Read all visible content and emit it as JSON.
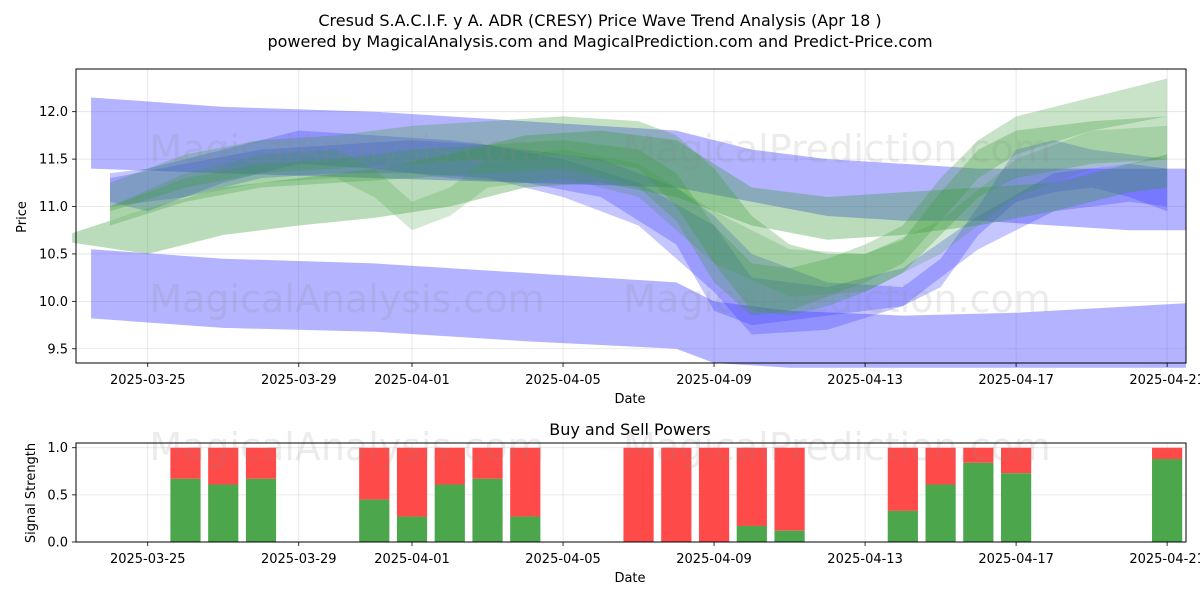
{
  "chart_data": [
    {
      "type": "area",
      "title": "Cresud S.A.C.I.F. y A. ADR (CRESY) Price Wave Trend Analysis (Apr 18 )",
      "subtitle": "powered by MagicalAnalysis.com and MagicalPrediction.com and Predict-Price.com",
      "xlabel": "Date",
      "ylabel": "Price",
      "x_start": "2025-03-23",
      "xlim": [
        0.1,
        29.5
      ],
      "ylim": [
        9.35,
        12.45
      ],
      "grid": true,
      "x_ticks": [
        {
          "day": 2,
          "label": "2025-03-25"
        },
        {
          "day": 6,
          "label": "2025-03-29"
        },
        {
          "day": 9,
          "label": "2025-04-01"
        },
        {
          "day": 13,
          "label": "2025-04-05"
        },
        {
          "day": 17,
          "label": "2025-04-09"
        },
        {
          "day": 21,
          "label": "2025-04-13"
        },
        {
          "day": 25,
          "label": "2025-04-17"
        },
        {
          "day": 29,
          "label": "2025-04-21"
        }
      ],
      "y_ticks": [
        9.5,
        10.0,
        10.5,
        11.0,
        11.5,
        12.0
      ],
      "colors": {
        "blue": "#4040ff",
        "green": "#3a9a3a"
      },
      "bands": [
        {
          "color": "blue",
          "opacity": 0.4,
          "x": [
            0.5,
            4,
            8,
            12,
            16,
            18,
            20,
            22,
            24,
            26,
            28,
            29.5
          ],
          "upper": [
            12.15,
            12.05,
            12.0,
            11.9,
            11.8,
            11.6,
            11.5,
            11.45,
            11.4,
            11.4,
            11.4,
            11.4
          ],
          "lower": [
            11.4,
            11.35,
            11.3,
            11.25,
            11.2,
            11.05,
            10.9,
            10.85,
            10.85,
            10.8,
            10.75,
            10.75
          ]
        },
        {
          "color": "blue",
          "opacity": 0.4,
          "x": [
            0.5,
            4,
            8,
            12,
            16,
            17,
            19,
            22,
            25,
            29.5
          ],
          "upper": [
            10.55,
            10.45,
            10.4,
            10.3,
            10.2,
            10.0,
            9.9,
            9.85,
            9.88,
            9.98
          ],
          "lower": [
            9.82,
            9.72,
            9.68,
            9.58,
            9.5,
            9.35,
            9.3,
            9.3,
            9.3,
            9.3
          ]
        },
        {
          "color": "blue",
          "opacity": 0.3,
          "x": [
            1,
            2,
            4,
            6,
            8,
            10,
            12,
            14,
            16,
            17,
            18,
            20,
            22,
            23,
            24,
            25,
            26,
            27,
            28,
            29
          ],
          "upper": [
            11.35,
            11.4,
            11.6,
            11.8,
            11.75,
            11.7,
            11.6,
            11.5,
            11.2,
            10.9,
            10.5,
            10.2,
            10.15,
            10.45,
            11.0,
            11.6,
            11.7,
            11.6,
            11.55,
            11.5
          ],
          "lower": [
            11.05,
            10.95,
            11.25,
            11.45,
            11.4,
            11.3,
            11.25,
            11.1,
            10.6,
            9.9,
            9.75,
            9.85,
            9.95,
            10.15,
            10.7,
            11.05,
            11.15,
            11.2,
            11.1,
            10.95
          ]
        },
        {
          "color": "blue",
          "opacity": 0.3,
          "x": [
            1,
            3,
            5,
            7,
            9,
            11,
            13,
            15,
            17,
            18,
            20,
            22,
            24,
            26,
            28,
            29
          ],
          "upper": [
            11.3,
            11.45,
            11.6,
            11.65,
            11.7,
            11.65,
            11.5,
            11.25,
            10.8,
            10.25,
            10.15,
            10.35,
            10.9,
            11.35,
            11.45,
            11.4
          ],
          "lower": [
            11.0,
            11.1,
            11.3,
            11.35,
            11.35,
            11.3,
            11.1,
            10.8,
            10.1,
            9.65,
            9.7,
            9.95,
            10.55,
            10.95,
            11.05,
            11.0
          ]
        },
        {
          "color": "green",
          "opacity": 0.35,
          "x": [
            0,
            2,
            4,
            6,
            8,
            10,
            12,
            14,
            16,
            18,
            20,
            22,
            24,
            26,
            28,
            29
          ],
          "upper": [
            10.72,
            10.98,
            11.2,
            11.3,
            11.4,
            11.55,
            11.75,
            11.8,
            11.7,
            11.2,
            11.1,
            11.15,
            11.2,
            11.25,
            11.45,
            11.55
          ],
          "lower": [
            10.62,
            10.5,
            10.7,
            10.8,
            10.88,
            11.0,
            11.2,
            11.25,
            11.1,
            10.8,
            10.65,
            10.7,
            10.8,
            10.95,
            11.15,
            11.2
          ]
        },
        {
          "color": "green",
          "opacity": 0.3,
          "x": [
            1,
            3,
            5,
            7,
            9,
            11,
            13,
            15,
            16,
            17,
            18,
            19,
            20,
            21,
            22,
            23,
            24,
            25,
            27,
            29
          ],
          "upper": [
            11.25,
            11.55,
            11.7,
            11.75,
            11.85,
            11.9,
            11.95,
            11.9,
            11.75,
            11.4,
            10.9,
            10.6,
            10.5,
            10.5,
            10.65,
            11.15,
            11.6,
            11.8,
            11.9,
            11.95
          ],
          "lower": [
            10.95,
            11.2,
            11.35,
            11.4,
            11.45,
            11.5,
            11.55,
            11.4,
            11.0,
            10.4,
            9.9,
            9.85,
            9.95,
            10.1,
            10.3,
            10.7,
            11.1,
            11.3,
            11.45,
            11.5
          ]
        },
        {
          "color": "green",
          "opacity": 0.28,
          "x": [
            1,
            3,
            5,
            7,
            9,
            11,
            13,
            15,
            16,
            17,
            18,
            19,
            20,
            21,
            22,
            23,
            24,
            25,
            27,
            29
          ],
          "upper": [
            11.0,
            11.3,
            11.45,
            11.5,
            11.6,
            11.65,
            11.7,
            11.6,
            11.35,
            10.8,
            10.4,
            10.35,
            10.45,
            10.6,
            10.8,
            11.3,
            11.7,
            11.95,
            12.15,
            12.35
          ],
          "lower": [
            10.8,
            11.05,
            11.2,
            11.25,
            11.3,
            11.35,
            11.4,
            11.2,
            10.85,
            10.2,
            9.85,
            9.9,
            10.05,
            10.2,
            10.4,
            10.85,
            11.3,
            11.55,
            11.8,
            11.95
          ]
        },
        {
          "color": "green",
          "opacity": 0.22,
          "x": [
            1,
            3,
            5,
            7,
            8,
            9,
            10,
            11,
            13,
            15,
            17,
            19,
            21,
            23,
            25,
            27,
            29
          ],
          "upper": [
            11.0,
            11.35,
            11.55,
            11.6,
            11.4,
            11.05,
            11.2,
            11.5,
            11.6,
            11.45,
            10.95,
            10.55,
            10.5,
            10.85,
            11.5,
            11.8,
            11.85
          ],
          "lower": [
            10.85,
            11.1,
            11.25,
            11.3,
            11.1,
            10.75,
            10.9,
            11.2,
            11.3,
            11.1,
            10.4,
            10.05,
            10.1,
            10.5,
            11.1,
            11.4,
            11.5
          ]
        }
      ]
    },
    {
      "type": "bar",
      "title": "Buy and Sell Powers",
      "xlabel": "Date",
      "ylabel": "Signal Strength",
      "x_start": "2025-03-23",
      "xlim": [
        0.1,
        29.5
      ],
      "ylim": [
        0,
        1.05
      ],
      "y_ticks": [
        0.0,
        0.5,
        1.0
      ],
      "x_ticks": [
        {
          "day": 2,
          "label": "2025-03-25"
        },
        {
          "day": 6,
          "label": "2025-03-29"
        },
        {
          "day": 9,
          "label": "2025-04-01"
        },
        {
          "day": 13,
          "label": "2025-04-05"
        },
        {
          "day": 17,
          "label": "2025-04-09"
        },
        {
          "day": 21,
          "label": "2025-04-13"
        },
        {
          "day": 25,
          "label": "2025-04-17"
        },
        {
          "day": 29,
          "label": "2025-04-21"
        }
      ],
      "colors": {
        "buy": "#4ca64c",
        "sell": "#ff4a4a"
      },
      "series": [
        {
          "name": "Buy",
          "color": "buy"
        },
        {
          "name": "Sell",
          "color": "sell"
        }
      ],
      "bars": [
        {
          "day": 3,
          "buy": 0.67
        },
        {
          "day": 4,
          "buy": 0.61
        },
        {
          "day": 5,
          "buy": 0.67
        },
        {
          "day": 8,
          "buy": 0.45
        },
        {
          "day": 9,
          "buy": 0.27
        },
        {
          "day": 10,
          "buy": 0.61
        },
        {
          "day": 11,
          "buy": 0.67
        },
        {
          "day": 12,
          "buy": 0.27
        },
        {
          "day": 15,
          "buy": 0.0
        },
        {
          "day": 16,
          "buy": 0.0
        },
        {
          "day": 17,
          "buy": 0.0
        },
        {
          "day": 18,
          "buy": 0.17
        },
        {
          "day": 19,
          "buy": 0.12
        },
        {
          "day": 22,
          "buy": 0.33
        },
        {
          "day": 23,
          "buy": 0.61
        },
        {
          "day": 24,
          "buy": 0.84
        },
        {
          "day": 25,
          "buy": 0.73
        },
        {
          "day": 29,
          "buy": 0.88
        }
      ]
    }
  ],
  "watermarks": {
    "top_left": "MagicalAnalysis.com",
    "top_right": "MagicalPrediction.com",
    "bottom_left": "MagicalAnalysis.com",
    "bottom_right": "MagicalPrediction.com",
    "lower_left": "MagicalAnalysis.com",
    "lower_right": "MagicalPrediction.com"
  }
}
